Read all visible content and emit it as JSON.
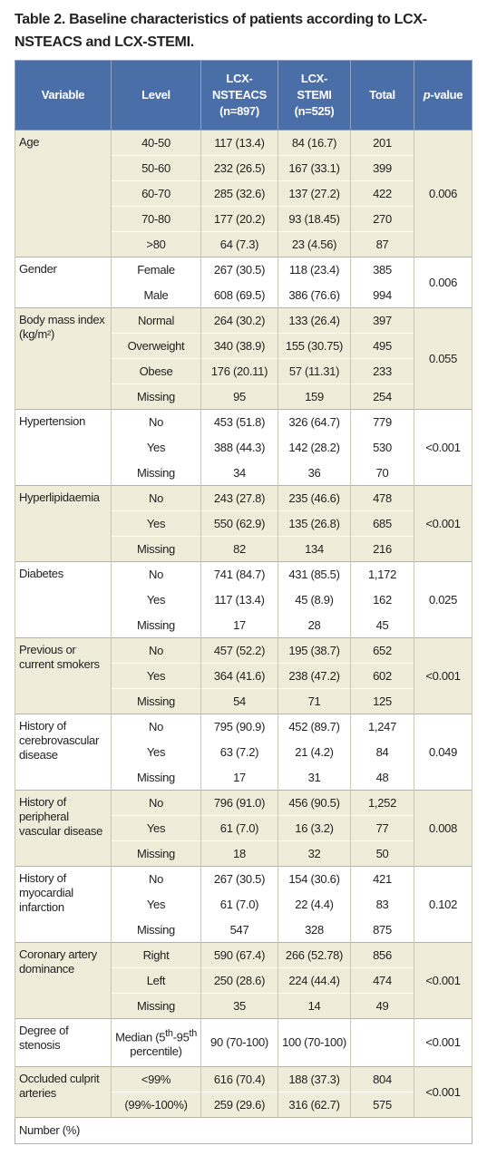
{
  "title": "Table 2. Baseline characteristics of patients according to LCX-NSTEACS and LCX-STEMI.",
  "table": {
    "headers": [
      "Variable",
      "Level",
      "LCX-NSTEACS (n=897)",
      "LCX-STEMI (n=525)",
      "Total",
      [
        "p",
        "-value"
      ]
    ],
    "groups": [
      {
        "variable": "Age",
        "p": "0.006",
        "rows": [
          [
            "40-50",
            "117 (13.4)",
            "84 (16.7)",
            "201"
          ],
          [
            "50-60",
            "232 (26.5)",
            "167 (33.1)",
            "399"
          ],
          [
            "60-70",
            "285 (32.6)",
            "137 (27.2)",
            "422"
          ],
          [
            "70-80",
            "177 (20.2)",
            "93 (18.45)",
            "270"
          ],
          [
            ">80",
            "64 (7.3)",
            "23 (4.56)",
            "87"
          ]
        ]
      },
      {
        "variable": "Gender",
        "p": "0.006",
        "rows": [
          [
            "Female",
            "267 (30.5)",
            "118 (23.4)",
            "385"
          ],
          [
            "Male",
            "608 (69.5)",
            "386 (76.6)",
            "994"
          ]
        ]
      },
      {
        "variable": "Body mass index (kg/m²)",
        "p": "0.055",
        "rows": [
          [
            "Normal",
            "264 (30.2)",
            "133 (26.4)",
            "397"
          ],
          [
            "Overweight",
            "340 (38.9)",
            "155 (30.75)",
            "495"
          ],
          [
            "Obese",
            "176 (20.11)",
            "57 (11.31)",
            "233"
          ],
          [
            "Missing",
            "95",
            "159",
            "254"
          ]
        ]
      },
      {
        "variable": "Hypertension",
        "p": "<0.001",
        "rows": [
          [
            "No",
            "453 (51.8)",
            "326 (64.7)",
            "779"
          ],
          [
            "Yes",
            "388 (44.3)",
            "142 (28.2)",
            "530"
          ],
          [
            "Missing",
            "34",
            "36",
            "70"
          ]
        ]
      },
      {
        "variable": "Hyperlipidaemia",
        "p": "<0.001",
        "rows": [
          [
            "No",
            "243 (27.8)",
            "235 (46.6)",
            "478"
          ],
          [
            "Yes",
            "550 (62.9)",
            "135 (26.8)",
            "685"
          ],
          [
            "Missing",
            "82",
            "134",
            "216"
          ]
        ]
      },
      {
        "variable": "Diabetes",
        "p": "0.025",
        "rows": [
          [
            "No",
            "741 (84.7)",
            "431 (85.5)",
            "1,172"
          ],
          [
            "Yes",
            "117 (13.4)",
            "45 (8.9)",
            "162"
          ],
          [
            "Missing",
            "17",
            "28",
            "45"
          ]
        ]
      },
      {
        "variable": "Previous or current smokers",
        "p": "<0.001",
        "rows": [
          [
            "No",
            "457 (52.2)",
            "195 (38.7)",
            "652"
          ],
          [
            "Yes",
            "364 (41.6)",
            "238 (47.2)",
            "602"
          ],
          [
            "Missing",
            "54",
            "71",
            "125"
          ]
        ]
      },
      {
        "variable": "History of cerebrovascular disease",
        "p": "0.049",
        "rows": [
          [
            "No",
            "795 (90.9)",
            "452 (89.7)",
            "1,247"
          ],
          [
            "Yes",
            "63 (7.2)",
            "21 (4.2)",
            "84"
          ],
          [
            "Missing",
            "17",
            "31",
            "48"
          ]
        ]
      },
      {
        "variable": "History of peripheral vascular disease",
        "p": "0.008",
        "rows": [
          [
            "No",
            "796 (91.0)",
            "456 (90.5)",
            "1,252"
          ],
          [
            "Yes",
            "61 (7.0)",
            "16 (3.2)",
            "77"
          ],
          [
            "Missing",
            "18",
            "32",
            "50"
          ]
        ]
      },
      {
        "variable": "History of myocardial infarction",
        "p": "0.102",
        "rows": [
          [
            "No",
            "267 (30.5)",
            "154 (30.6)",
            "421"
          ],
          [
            "Yes",
            "61 (7.0)",
            "22 (4.4)",
            "83"
          ],
          [
            "Missing",
            "547",
            "328",
            "875"
          ]
        ]
      },
      {
        "variable": "Coronary artery dominance",
        "p": "<0.001",
        "rows": [
          [
            "Right",
            "590 (67.4)",
            "266 (52.78)",
            "856"
          ],
          [
            "Left",
            "250 (28.6)",
            "224 (44.4)",
            "474"
          ],
          [
            "Missing",
            "35",
            "14",
            "49"
          ]
        ]
      },
      {
        "variable": "Degree of stenosis",
        "p": "<0.001",
        "rows": [
          [
            [
              "Median (5",
              "th",
              "-95",
              "th",
              " percentile)"
            ],
            "90 (70-100)",
            "100 (70-100)",
            null
          ]
        ]
      },
      {
        "variable": "Occluded culprit arteries",
        "p": "<0.001",
        "rows": [
          [
            "<99%",
            "616 (70.4)",
            "188 (37.3)",
            "804"
          ],
          [
            "(99%-100%)",
            "259 (29.6)",
            "316 (62.7)",
            "575"
          ]
        ]
      }
    ],
    "footnote": "Number (%)"
  }
}
